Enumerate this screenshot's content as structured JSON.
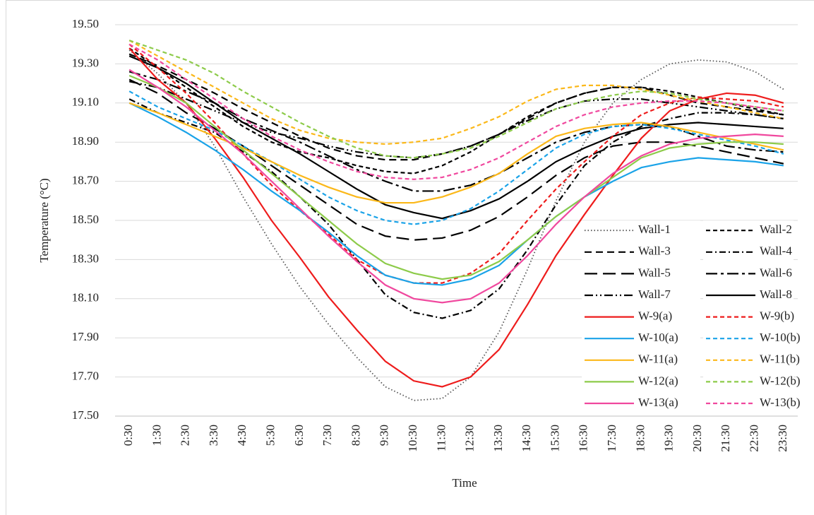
{
  "chart_data": {
    "type": "line",
    "x_label": "Time",
    "y_label": "Temperature (°C)",
    "categories": [
      "0:30",
      "1:30",
      "2:30",
      "3:30",
      "4:30",
      "5:30",
      "6:30",
      "7:30",
      "8:30",
      "9:30",
      "10:30",
      "11:30",
      "12:30",
      "13:30",
      "14:30",
      "15:30",
      "16:30",
      "17:30",
      "18:30",
      "19:30",
      "20:30",
      "21:30",
      "22:30",
      "23:30"
    ],
    "ylim": [
      17.5,
      19.5
    ],
    "yticks": [
      {
        "value": 17.5,
        "label": "17.50"
      },
      {
        "value": 17.7,
        "label": "17.70"
      },
      {
        "value": 17.9,
        "label": "17.90"
      },
      {
        "value": 18.1,
        "label": "18.10"
      },
      {
        "value": 18.3,
        "label": "18.30"
      },
      {
        "value": 18.5,
        "label": "18.50"
      },
      {
        "value": 18.7,
        "label": "18.70"
      },
      {
        "value": 18.9,
        "label": "18.90"
      },
      {
        "value": 19.1,
        "label": "19.10"
      },
      {
        "value": 19.3,
        "label": "19.30"
      },
      {
        "value": 19.5,
        "label": "19.50"
      }
    ],
    "grid": true,
    "legend": "lower right",
    "series": [
      {
        "name": "Wall-1",
        "color": "#555555",
        "style": "dotted",
        "values": [
          19.37,
          19.25,
          19.1,
          18.88,
          18.62,
          18.38,
          18.16,
          17.97,
          17.8,
          17.65,
          17.58,
          17.59,
          17.7,
          17.93,
          18.25,
          18.6,
          18.9,
          19.1,
          19.22,
          19.3,
          19.32,
          19.31,
          19.26,
          19.17
        ]
      },
      {
        "name": "Wall-2",
        "color": "#000000",
        "style": "short-dash",
        "values": [
          19.38,
          19.28,
          19.18,
          19.08,
          18.98,
          18.9,
          18.85,
          18.82,
          18.78,
          18.75,
          18.74,
          18.78,
          18.85,
          18.94,
          19.03,
          19.1,
          19.15,
          19.18,
          19.18,
          19.16,
          19.13,
          19.1,
          19.07,
          19.04
        ]
      },
      {
        "name": "Wall-3",
        "color": "#000000",
        "style": "dash",
        "values": [
          19.35,
          19.29,
          19.22,
          19.15,
          19.07,
          19.0,
          18.93,
          18.87,
          18.83,
          18.81,
          18.81,
          18.84,
          18.88,
          18.94,
          19.02,
          19.1,
          19.15,
          19.18,
          19.18,
          19.14,
          19.1,
          19.08,
          19.06,
          19.04
        ]
      },
      {
        "name": "Wall-4",
        "color": "#000000",
        "style": "dash-dot",
        "values": [
          19.12,
          19.05,
          19.0,
          18.95,
          18.85,
          18.75,
          18.62,
          18.48,
          18.3,
          18.12,
          18.03,
          18.0,
          18.04,
          18.15,
          18.35,
          18.58,
          18.78,
          18.9,
          18.98,
          19.02,
          19.05,
          19.05,
          19.04,
          19.02
        ]
      },
      {
        "name": "Wall-5",
        "color": "#000000",
        "style": "long-dash",
        "values": [
          19.22,
          19.15,
          19.05,
          18.97,
          18.88,
          18.78,
          18.68,
          18.58,
          18.48,
          18.42,
          18.4,
          18.41,
          18.45,
          18.52,
          18.62,
          18.73,
          18.82,
          18.88,
          18.9,
          18.9,
          18.88,
          18.85,
          18.82,
          18.79
        ]
      },
      {
        "name": "Wall-6",
        "color": "#000000",
        "style": "long-dash-dot",
        "values": [
          19.26,
          19.22,
          19.16,
          19.1,
          19.02,
          18.96,
          18.9,
          18.83,
          18.76,
          18.7,
          18.65,
          18.65,
          18.68,
          18.74,
          18.82,
          18.9,
          18.95,
          18.98,
          18.99,
          18.98,
          18.93,
          18.88,
          18.86,
          18.85
        ]
      },
      {
        "name": "Wall-7",
        "color": "#000000",
        "style": "dash-dot-dot",
        "values": [
          19.21,
          19.18,
          19.12,
          19.06,
          19.0,
          18.95,
          18.92,
          18.88,
          18.85,
          18.83,
          18.82,
          18.84,
          18.88,
          18.94,
          19.01,
          19.07,
          19.11,
          19.12,
          19.12,
          19.1,
          19.08,
          19.06,
          19.04,
          19.02
        ]
      },
      {
        "name": "Wall-8",
        "color": "#000000",
        "style": "solid",
        "values": [
          19.34,
          19.28,
          19.2,
          19.1,
          19.0,
          18.92,
          18.84,
          18.75,
          18.66,
          18.58,
          18.54,
          18.51,
          18.55,
          18.61,
          18.7,
          18.8,
          18.87,
          18.93,
          18.97,
          18.99,
          19.0,
          18.99,
          18.98,
          18.97
        ]
      },
      {
        "name": "W-9(a)",
        "color": "#ee1c1c",
        "style": "solid",
        "values": [
          19.38,
          19.22,
          19.1,
          18.92,
          18.72,
          18.5,
          18.31,
          18.11,
          17.94,
          17.78,
          17.68,
          17.65,
          17.7,
          17.84,
          18.07,
          18.32,
          18.53,
          18.73,
          18.92,
          19.06,
          19.12,
          19.15,
          19.14,
          19.1
        ]
      },
      {
        "name": "W-9(b)",
        "color": "#ee1c1c",
        "style": "short-dash",
        "values": [
          19.4,
          19.28,
          19.15,
          19.0,
          18.84,
          18.68,
          18.55,
          18.43,
          18.3,
          18.22,
          18.18,
          18.18,
          18.23,
          18.33,
          18.5,
          18.66,
          18.8,
          18.93,
          19.04,
          19.1,
          19.13,
          19.12,
          19.11,
          19.08
        ]
      },
      {
        "name": "W-10(a)",
        "color": "#1aa3e8",
        "style": "solid",
        "values": [
          19.1,
          19.03,
          18.95,
          18.86,
          18.76,
          18.65,
          18.55,
          18.44,
          18.32,
          18.22,
          18.18,
          18.17,
          18.2,
          18.27,
          18.4,
          18.52,
          18.62,
          18.7,
          18.77,
          18.8,
          18.82,
          18.81,
          18.8,
          18.78
        ]
      },
      {
        "name": "W-10(b)",
        "color": "#1aa3e8",
        "style": "short-dash",
        "values": [
          19.16,
          19.08,
          19.02,
          18.96,
          18.88,
          18.8,
          18.71,
          18.62,
          18.55,
          18.5,
          18.48,
          18.5,
          18.56,
          18.65,
          18.76,
          18.87,
          18.94,
          18.98,
          18.99,
          18.97,
          18.94,
          18.91,
          18.88,
          18.84
        ]
      },
      {
        "name": "W-11(a)",
        "color": "#fbb81a",
        "style": "solid",
        "values": [
          19.1,
          19.05,
          18.99,
          18.93,
          18.87,
          18.8,
          18.73,
          18.67,
          18.62,
          18.59,
          18.59,
          18.62,
          18.67,
          18.74,
          18.84,
          18.93,
          18.97,
          18.99,
          19.0,
          18.98,
          18.95,
          18.92,
          18.89,
          18.86
        ]
      },
      {
        "name": "W-11(b)",
        "color": "#fbb81a",
        "style": "short-dash",
        "values": [
          19.42,
          19.34,
          19.26,
          19.18,
          19.1,
          19.02,
          18.96,
          18.92,
          18.9,
          18.89,
          18.9,
          18.92,
          18.97,
          19.03,
          19.11,
          19.17,
          19.19,
          19.19,
          19.17,
          19.14,
          19.11,
          19.08,
          19.05,
          19.02
        ]
      },
      {
        "name": "W-12(a)",
        "color": "#8dcb4a",
        "style": "solid",
        "values": [
          19.24,
          19.18,
          19.1,
          18.98,
          18.86,
          18.74,
          18.62,
          18.5,
          18.38,
          18.28,
          18.23,
          18.2,
          18.22,
          18.29,
          18.4,
          18.52,
          18.62,
          18.72,
          18.82,
          18.87,
          18.89,
          18.9,
          18.9,
          18.89
        ]
      },
      {
        "name": "W-12(b)",
        "color": "#8dcb4a",
        "style": "short-dash",
        "values": [
          19.42,
          19.37,
          19.32,
          19.25,
          19.16,
          19.08,
          19.0,
          18.93,
          18.87,
          18.83,
          18.82,
          18.84,
          18.87,
          18.93,
          19.0,
          19.07,
          19.11,
          19.14,
          19.16,
          19.15,
          19.12,
          19.1,
          19.08,
          19.06
        ]
      },
      {
        "name": "W-13(a)",
        "color": "#f0489e",
        "style": "solid",
        "values": [
          19.27,
          19.18,
          19.08,
          18.96,
          18.84,
          18.7,
          18.56,
          18.42,
          18.29,
          18.17,
          18.1,
          18.08,
          18.1,
          18.18,
          18.32,
          18.48,
          18.62,
          18.74,
          18.83,
          18.89,
          18.92,
          18.93,
          18.94,
          18.93
        ]
      },
      {
        "name": "W-13(b)",
        "color": "#f0489e",
        "style": "short-dash",
        "values": [
          19.4,
          19.32,
          19.22,
          19.12,
          19.02,
          18.93,
          18.86,
          18.8,
          18.75,
          18.72,
          18.71,
          18.72,
          18.76,
          18.82,
          18.9,
          18.98,
          19.04,
          19.08,
          19.1,
          19.11,
          19.11,
          19.1,
          19.08,
          19.06
        ]
      }
    ]
  }
}
